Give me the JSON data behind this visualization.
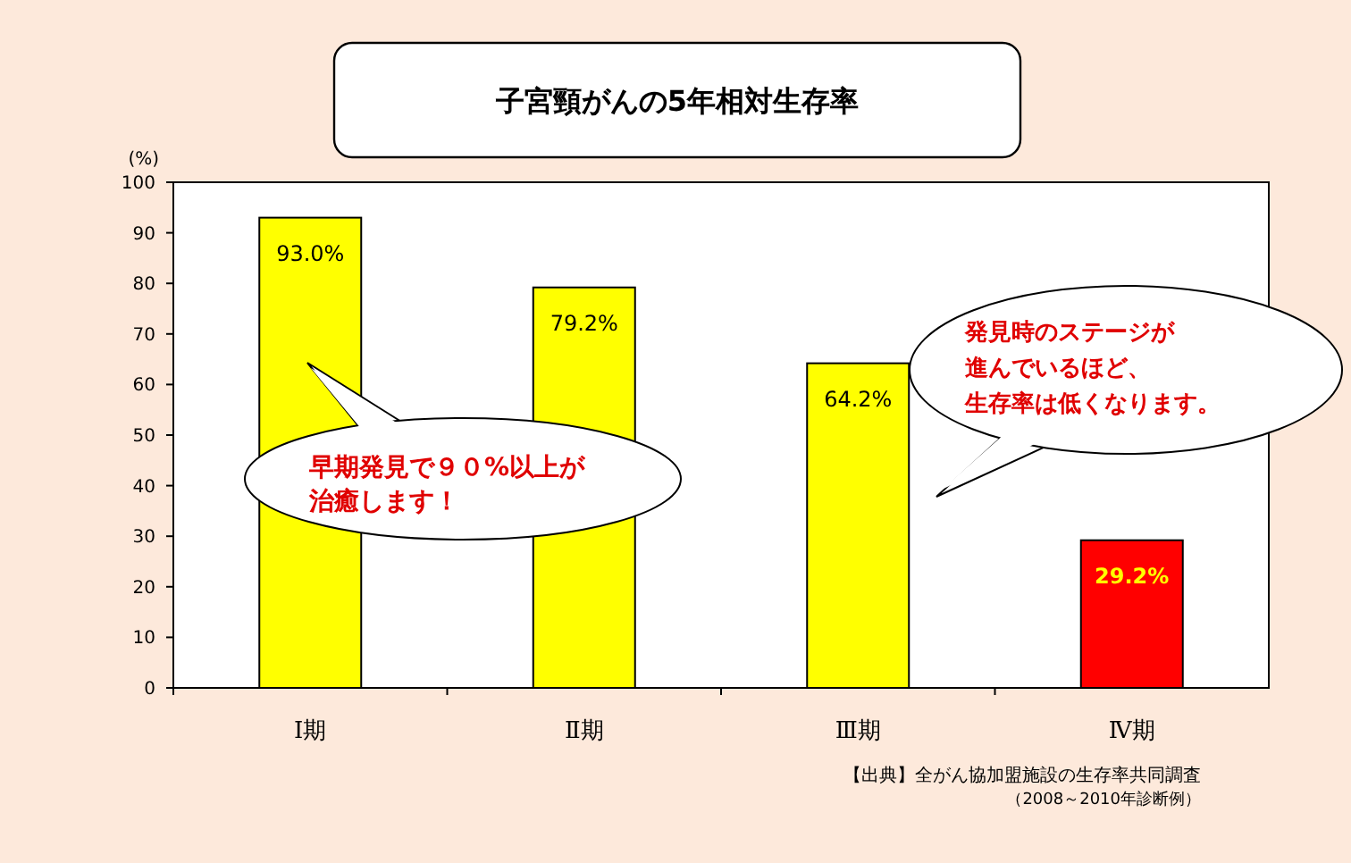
{
  "chart_data": {
    "type": "bar",
    "title": "子宮頸がんの5年相対生存率",
    "ylabel": "(%)",
    "categories": [
      "Ⅰ期",
      "Ⅱ期",
      "Ⅲ期",
      "Ⅳ期"
    ],
    "values": [
      93.0,
      79.2,
      64.2,
      29.2
    ],
    "colors": [
      "#ffff00",
      "#ffff00",
      "#ffff00",
      "#ff0000"
    ],
    "value_labels": [
      "93.0%",
      "79.2%",
      "64.2%",
      "29.2%"
    ],
    "ylim": [
      0,
      100
    ],
    "yticks": [
      0,
      10,
      20,
      30,
      40,
      50,
      60,
      70,
      80,
      90,
      100
    ],
    "grid": false,
    "annotations": [
      "早期発見で９０%以上が",
      "治癒します！",
      "発見時のステージが",
      "進んでいるほど、",
      "生存率は低くなります。",
      "【出典】全がん協加盟施設の生存率共同調査",
      "（2008～2010年診断例）"
    ]
  }
}
